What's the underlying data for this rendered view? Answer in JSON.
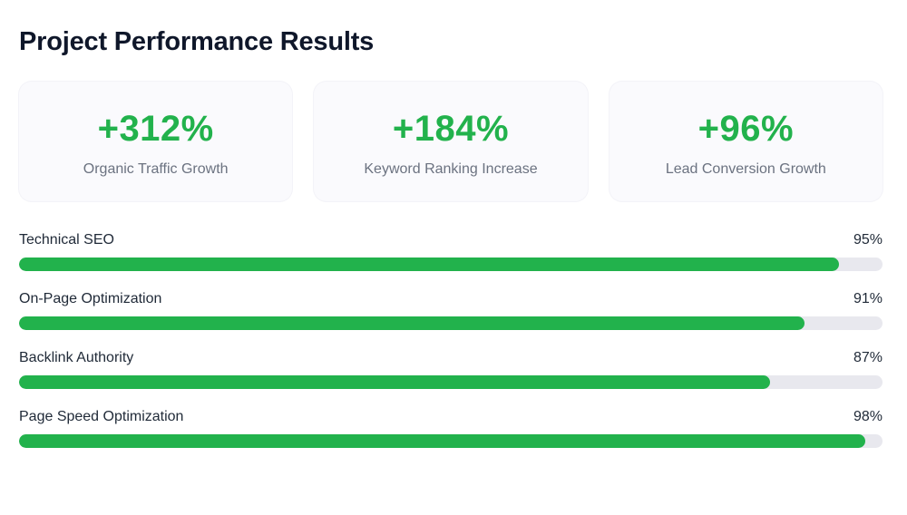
{
  "page": {
    "title": "Project Performance Results"
  },
  "accent_color": "#22b24c",
  "stats": [
    {
      "value": "+312%",
      "label": "Organic Traffic Growth"
    },
    {
      "value": "+184%",
      "label": "Keyword Ranking Increase"
    },
    {
      "value": "+96%",
      "label": "Lead Conversion Growth"
    }
  ],
  "metrics": [
    {
      "label": "Technical SEO",
      "percent_text": "95%",
      "percent": 95
    },
    {
      "label": "On-Page Optimization",
      "percent_text": "91%",
      "percent": 91
    },
    {
      "label": "Backlink Authority",
      "percent_text": "87%",
      "percent": 87
    },
    {
      "label": "Page Speed Optimization",
      "percent_text": "98%",
      "percent": 98
    }
  ]
}
